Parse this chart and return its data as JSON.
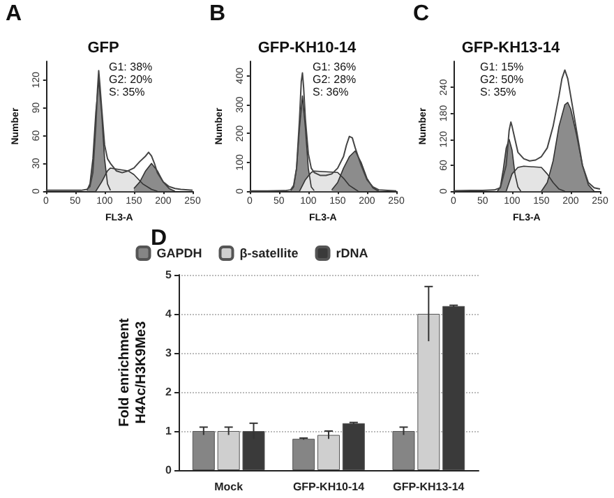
{
  "chart_data": [
    {
      "type": "area",
      "title": "GFP",
      "xlabel": "FL3-A",
      "ylabel": "Number",
      "annotations": [
        "A",
        "G1: 38%",
        "G2: 20%",
        "S: 35%"
      ],
      "xlim": [
        0,
        250
      ],
      "xticks": [
        0,
        50,
        100,
        150,
        200,
        250
      ],
      "ylim": [
        0,
        140
      ],
      "yticks": [
        0,
        30,
        60,
        90,
        120
      ],
      "grid": false,
      "legend": false,
      "marker": "none",
      "series": [
        {
          "type": "area",
          "color": "#8c8c8c",
          "x": [
            70,
            75,
            80,
            85,
            90,
            95,
            100,
            105,
            110
          ],
          "values": [
            1,
            8,
            35,
            85,
            120,
            85,
            35,
            8,
            1
          ]
        },
        {
          "type": "area",
          "color": "#e4e4e4",
          "x": [
            85,
            95,
            105,
            110,
            140,
            150,
            165,
            180,
            190
          ],
          "values": [
            0,
            10,
            22,
            25,
            22,
            18,
            8,
            2,
            0
          ]
        },
        {
          "type": "area",
          "color": "#8c8c8c",
          "x": [
            150,
            160,
            170,
            180,
            190,
            200,
            210,
            220
          ],
          "values": [
            3,
            10,
            22,
            30,
            22,
            10,
            3,
            0
          ]
        },
        {
          "type": "line",
          "color": "#444444",
          "x": [
            0,
            20,
            40,
            60,
            70,
            75,
            80,
            85,
            88,
            90,
            92,
            95,
            100,
            105,
            110,
            120,
            130,
            140,
            150,
            160,
            170,
            175,
            180,
            185,
            190,
            200,
            210,
            220,
            230,
            250
          ],
          "values": [
            1,
            1,
            1,
            1,
            2,
            5,
            20,
            70,
            110,
            130,
            115,
            90,
            50,
            35,
            30,
            22,
            20,
            22,
            25,
            32,
            38,
            42,
            38,
            30,
            20,
            10,
            5,
            3,
            2,
            1
          ]
        }
      ]
    },
    {
      "type": "area",
      "title": "GFP-KH10-14",
      "xlabel": "FL3-A",
      "ylabel": "Number",
      "annotations": [
        "B",
        "G1: 36%",
        "G2: 28%",
        "S: 36%"
      ],
      "xlim": [
        0,
        250
      ],
      "xticks": [
        0,
        50,
        100,
        150,
        200,
        250
      ],
      "ylim": [
        0,
        450
      ],
      "yticks": [
        0,
        100,
        200,
        300,
        400
      ],
      "grid": false,
      "legend": false,
      "marker": "none",
      "series": [
        {
          "type": "area",
          "color": "#8c8c8c",
          "x": [
            70,
            75,
            80,
            85,
            90,
            95,
            100,
            105,
            110
          ],
          "values": [
            2,
            15,
            80,
            220,
            330,
            220,
            80,
            15,
            2
          ]
        },
        {
          "type": "area",
          "color": "#e4e4e4",
          "x": [
            85,
            95,
            105,
            110,
            150,
            160,
            170,
            185
          ],
          "values": [
            0,
            40,
            65,
            70,
            65,
            45,
            20,
            0
          ]
        },
        {
          "type": "area",
          "color": "#8c8c8c",
          "x": [
            140,
            150,
            160,
            170,
            180,
            190,
            200,
            210,
            220
          ],
          "values": [
            5,
            30,
            80,
            120,
            140,
            100,
            45,
            12,
            0
          ]
        },
        {
          "type": "line",
          "color": "#444444",
          "x": [
            0,
            30,
            60,
            70,
            75,
            80,
            85,
            88,
            90,
            92,
            95,
            100,
            105,
            110,
            120,
            130,
            140,
            150,
            160,
            165,
            170,
            175,
            180,
            190,
            200,
            210,
            220,
            250
          ],
          "values": [
            1,
            1,
            2,
            5,
            20,
            80,
            250,
            380,
            410,
            360,
            250,
            130,
            80,
            65,
            55,
            55,
            60,
            80,
            120,
            160,
            190,
            185,
            150,
            90,
            40,
            15,
            5,
            1
          ]
        }
      ]
    },
    {
      "type": "area",
      "title": "GFP-KH13-14",
      "xlabel": "FL3-A",
      "ylabel": "Number",
      "annotations": [
        "C",
        "G1: 15%",
        "G2: 50%",
        "S: 35%"
      ],
      "xlim": [
        0,
        250
      ],
      "xticks": [
        0,
        50,
        100,
        150,
        200,
        250
      ],
      "ylim": [
        0,
        300
      ],
      "yticks": [
        0,
        60,
        120,
        180,
        240
      ],
      "grid": false,
      "legend": false,
      "marker": "none",
      "series": [
        {
          "type": "area",
          "color": "#8c8c8c",
          "x": [
            75,
            80,
            85,
            90,
            95,
            100,
            105,
            110,
            115
          ],
          "values": [
            0,
            10,
            50,
            100,
            120,
            95,
            40,
            10,
            0
          ]
        },
        {
          "type": "area",
          "color": "#e4e4e4",
          "x": [
            90,
            100,
            110,
            120,
            150,
            160,
            170,
            180,
            190
          ],
          "values": [
            0,
            40,
            55,
            58,
            55,
            40,
            20,
            5,
            0
          ]
        },
        {
          "type": "area",
          "color": "#8c8c8c",
          "x": [
            150,
            160,
            170,
            180,
            190,
            195,
            200,
            210,
            220,
            230,
            240
          ],
          "values": [
            0,
            20,
            70,
            150,
            200,
            205,
            190,
            130,
            60,
            15,
            0
          ]
        },
        {
          "type": "line",
          "color": "#444444",
          "x": [
            0,
            30,
            50,
            70,
            80,
            90,
            95,
            98,
            100,
            105,
            110,
            120,
            130,
            140,
            150,
            160,
            170,
            180,
            185,
            190,
            195,
            200,
            210,
            220,
            230,
            240,
            250
          ],
          "values": [
            1,
            2,
            2,
            3,
            8,
            60,
            140,
            160,
            150,
            120,
            90,
            75,
            70,
            72,
            80,
            100,
            150,
            220,
            260,
            280,
            260,
            220,
            140,
            60,
            20,
            8,
            5
          ]
        }
      ]
    },
    {
      "type": "bar",
      "ylabel": "Fold enrichment\nH4Ac/H3K9Me3",
      "annotations": [
        "D"
      ],
      "categories": [
        "Mock",
        "GFP-KH10-14",
        "GFP-KH13-14"
      ],
      "ylim": [
        0,
        5
      ],
      "yticks": [
        0,
        1,
        2,
        3,
        4,
        5
      ],
      "grid": "y",
      "legend": "top",
      "series": [
        {
          "name": "GAPDH",
          "color": "#858585",
          "values": [
            1,
            0.8,
            1
          ],
          "errors": [
            0.1,
            0.02,
            0.1
          ]
        },
        {
          "name": "β-satellite",
          "color": "#cfcfcf",
          "values": [
            1,
            0.9,
            4.0
          ],
          "errors": [
            0.1,
            0.1,
            0.7
          ]
        },
        {
          "name": "rDNA",
          "color": "#3a3a3a",
          "values": [
            1,
            1.2,
            4.2
          ],
          "errors": [
            0.2,
            0.02,
            0.02
          ]
        }
      ]
    }
  ]
}
